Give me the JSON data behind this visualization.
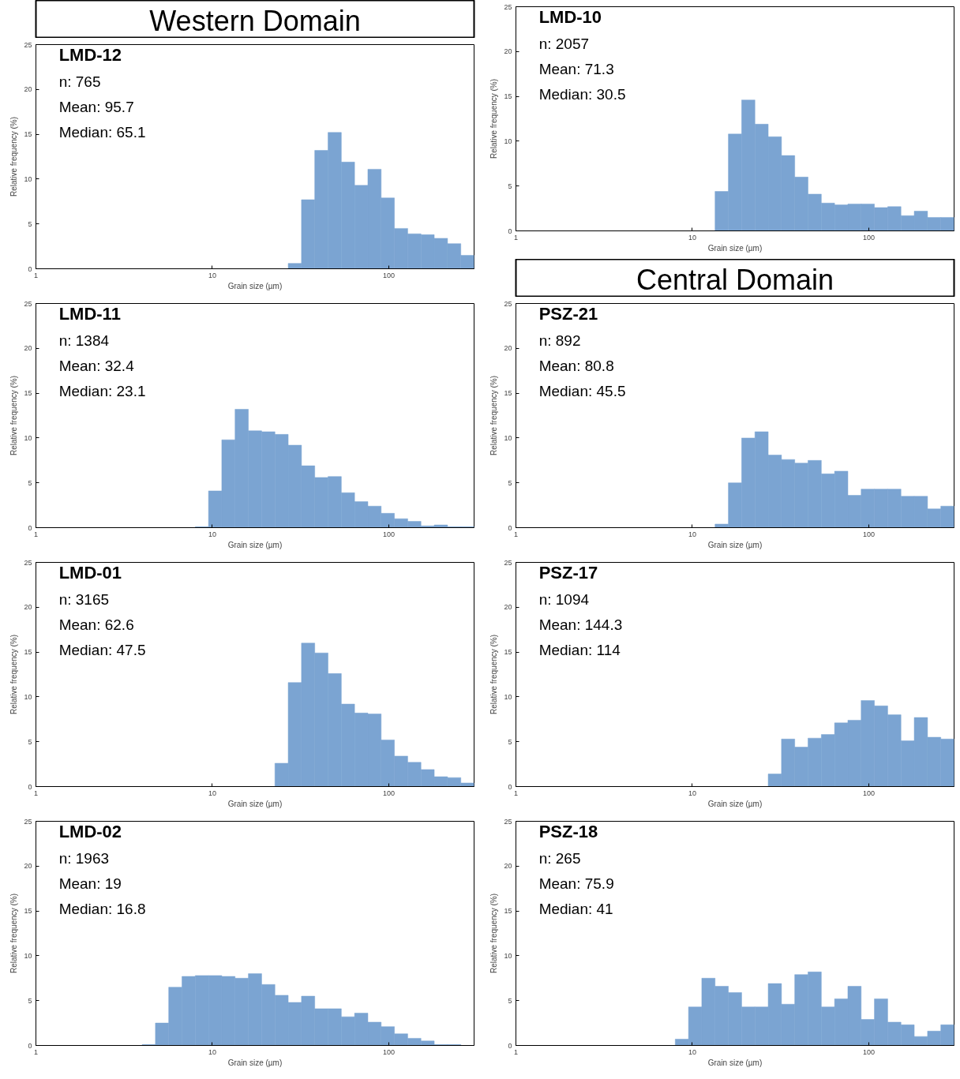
{
  "chart_data": [
    {
      "type": "other",
      "title": "Western Domain"
    },
    {
      "type": "histogram",
      "title": "LMD-10",
      "annotations": [
        "n: 2057",
        "Mean: 71.3",
        "Median: 30.5"
      ],
      "xlabel": "Grain size (µm)",
      "ylabel": "Relative frequency (%)",
      "color": "#7ba4d2",
      "log": "x",
      "xlim": [
        1,
        304.4
      ],
      "xticks": [
        1,
        10,
        100
      ],
      "ylim": [
        0,
        25
      ],
      "yticks": [
        0,
        5,
        10,
        15,
        20,
        25
      ],
      "bins": [
        13.45,
        16,
        19.03,
        22.63,
        26.91,
        32,
        38.05,
        45.25,
        53.82,
        64,
        76.11,
        90.51,
        107.6,
        128,
        152.2,
        181.0,
        215.3,
        256,
        304.4
      ],
      "values": [
        4.4,
        10.8,
        14.6,
        11.9,
        10.5,
        8.4,
        6.0,
        4.1,
        3.1,
        2.9,
        3.0,
        3.0,
        2.6,
        2.7,
        1.7,
        2.2,
        1.5,
        1.5
      ]
    },
    {
      "type": "histogram",
      "title": "LMD-12",
      "annotations": [
        "n: 765",
        "Mean: 95.7",
        "Median: 65.1"
      ],
      "xlabel": "Grain size (µm)",
      "ylabel": "Relative frequency (%)",
      "color": "#7ba4d2",
      "log": "x",
      "xlim": [
        1,
        304.4
      ],
      "xticks": [
        1,
        10,
        100
      ],
      "ylim": [
        0,
        25
      ],
      "yticks": [
        0,
        5,
        10,
        15,
        20,
        25
      ],
      "bins": [
        26.91,
        32,
        38.05,
        45.25,
        53.82,
        64,
        76.11,
        90.51,
        107.6,
        128,
        152.2,
        181.0,
        215.3,
        256,
        304.4
      ],
      "values": [
        0.6,
        7.7,
        13.2,
        15.2,
        11.9,
        9.3,
        11.1,
        7.9,
        4.5,
        3.9,
        3.8,
        3.4,
        2.8,
        1.5
      ]
    },
    {
      "type": "other",
      "title": "Central Domain"
    },
    {
      "type": "histogram",
      "title": "LMD-11",
      "annotations": [
        "n: 1384",
        "Mean: 32.4",
        "Median: 23.1"
      ],
      "xlabel": "Grain size (µm)",
      "ylabel": "Relative frequency (%)",
      "color": "#7ba4d2",
      "log": "x",
      "xlim": [
        1,
        304.4
      ],
      "xticks": [
        1,
        10,
        100
      ],
      "ylim": [
        0,
        25
      ],
      "yticks": [
        0,
        5,
        10,
        15,
        20,
        25
      ],
      "bins": [
        8,
        9.514,
        11.31,
        13.45,
        16,
        19.03,
        22.63,
        26.91,
        32,
        38.05,
        45.25,
        53.82,
        64,
        76.11,
        90.51,
        107.6,
        128,
        152.2,
        181.0,
        215.3,
        256,
        304.4
      ],
      "values": [
        0.1,
        4.1,
        9.8,
        13.2,
        10.8,
        10.7,
        10.4,
        9.2,
        6.9,
        5.6,
        5.7,
        3.9,
        2.9,
        2.4,
        1.6,
        1.0,
        0.7,
        0.2,
        0.3,
        0.1,
        0.1
      ]
    },
    {
      "type": "histogram",
      "title": "PSZ-21",
      "annotations": [
        "n: 892",
        "Mean: 80.8",
        "Median: 45.5"
      ],
      "xlabel": "Grain size (µm)",
      "ylabel": "Relative frequency (%)",
      "color": "#7ba4d2",
      "log": "x",
      "xlim": [
        1,
        304.4
      ],
      "xticks": [
        1,
        10,
        100
      ],
      "ylim": [
        0,
        25
      ],
      "yticks": [
        0,
        5,
        10,
        15,
        20,
        25
      ],
      "bins": [
        13.45,
        16,
        19.03,
        22.63,
        26.91,
        32,
        38.05,
        45.25,
        53.82,
        64,
        76.11,
        90.51,
        107.6,
        128,
        152.2,
        181.0,
        215.3,
        256,
        304.4
      ],
      "values": [
        0.4,
        5.0,
        10.0,
        10.7,
        8.1,
        7.6,
        7.2,
        7.5,
        6.0,
        6.3,
        3.6,
        4.3,
        4.3,
        4.3,
        3.5,
        3.5,
        2.1,
        2.4
      ]
    },
    {
      "type": "histogram",
      "title": "LMD-01",
      "annotations": [
        "n: 3165",
        "Mean: 62.6",
        "Median: 47.5"
      ],
      "xlabel": "Grain size (µm)",
      "ylabel": "Relative frequency (%)",
      "color": "#7ba4d2",
      "log": "x",
      "xlim": [
        1,
        304.4
      ],
      "xticks": [
        1,
        10,
        100
      ],
      "ylim": [
        0,
        25
      ],
      "yticks": [
        0,
        5,
        10,
        15,
        20,
        25
      ],
      "bins": [
        22.63,
        26.91,
        32,
        38.05,
        45.25,
        53.82,
        64,
        76.11,
        90.51,
        107.6,
        128,
        152.2,
        181.0,
        215.3,
        256,
        304.4
      ],
      "values": [
        2.6,
        11.6,
        16.0,
        14.9,
        12.6,
        9.2,
        8.2,
        8.1,
        5.2,
        3.4,
        2.7,
        1.9,
        1.1,
        1.0,
        0.4
      ]
    },
    {
      "type": "histogram",
      "title": "PSZ-17",
      "annotations": [
        "n: 1094",
        "Mean: 144.3",
        "Median: 114"
      ],
      "xlabel": "Grain size (µm)",
      "ylabel": "Relative frequency (%)",
      "color": "#7ba4d2",
      "log": "x",
      "xlim": [
        1,
        304.4
      ],
      "xticks": [
        1,
        10,
        100
      ],
      "ylim": [
        0,
        25
      ],
      "yticks": [
        0,
        5,
        10,
        15,
        20,
        25
      ],
      "bins": [
        26.91,
        32,
        38.05,
        45.25,
        53.82,
        64,
        76.11,
        90.51,
        107.6,
        128,
        152.2,
        181.0,
        215.3,
        256,
        304.4
      ],
      "values": [
        1.4,
        5.3,
        4.4,
        5.4,
        5.8,
        7.1,
        7.4,
        9.6,
        9.0,
        8.0,
        5.1,
        7.7,
        5.5,
        5.3
      ]
    },
    {
      "type": "histogram",
      "title": "LMD-02",
      "annotations": [
        "n: 1963",
        "Mean: 19",
        "Median: 16.8"
      ],
      "xlabel": "Grain size (µm)",
      "ylabel": "Relative frequency (%)",
      "color": "#7ba4d2",
      "log": "x",
      "xlim": [
        1,
        304.4
      ],
      "xticks": [
        1,
        10,
        100
      ],
      "ylim": [
        0,
        25
      ],
      "yticks": [
        0,
        5,
        10,
        15,
        20,
        25
      ],
      "bins": [
        4,
        4.757,
        5.657,
        6.727,
        8,
        9.514,
        11.31,
        13.45,
        16,
        19.03,
        22.63,
        26.91,
        32,
        38.05,
        45.25,
        53.82,
        64,
        76.11,
        90.51,
        107.6,
        128,
        152.2,
        181.0,
        215.3,
        256
      ],
      "values": [
        0.1,
        2.5,
        6.5,
        7.7,
        7.8,
        7.8,
        7.7,
        7.5,
        8.0,
        6.8,
        5.6,
        4.8,
        5.5,
        4.1,
        4.1,
        3.2,
        3.6,
        2.6,
        2.1,
        1.3,
        0.8,
        0.5,
        0.1,
        0.1
      ]
    },
    {
      "type": "histogram",
      "title": "PSZ-18",
      "annotations": [
        "n: 265",
        "Mean: 75.9",
        "Median: 41"
      ],
      "xlabel": "Grain size (µm)",
      "ylabel": "Relative frequency (%)",
      "color": "#7ba4d2",
      "log": "x",
      "xlim": [
        1,
        304.4
      ],
      "xticks": [
        1,
        10,
        100
      ],
      "ylim": [
        0,
        25
      ],
      "yticks": [
        0,
        5,
        10,
        15,
        20,
        25
      ],
      "bins": [
        8,
        9.514,
        11.31,
        13.45,
        16,
        19.03,
        22.63,
        26.91,
        32,
        38.05,
        45.25,
        53.82,
        64,
        76.11,
        90.51,
        107.6,
        128,
        152.2,
        181.0,
        215.3,
        256,
        304.4
      ],
      "values": [
        0.7,
        4.3,
        7.5,
        6.6,
        5.9,
        4.3,
        4.3,
        6.9,
        4.6,
        7.9,
        8.2,
        4.3,
        5.2,
        6.6,
        2.9,
        5.2,
        2.6,
        2.3,
        1.0,
        1.6,
        2.3
      ]
    }
  ]
}
